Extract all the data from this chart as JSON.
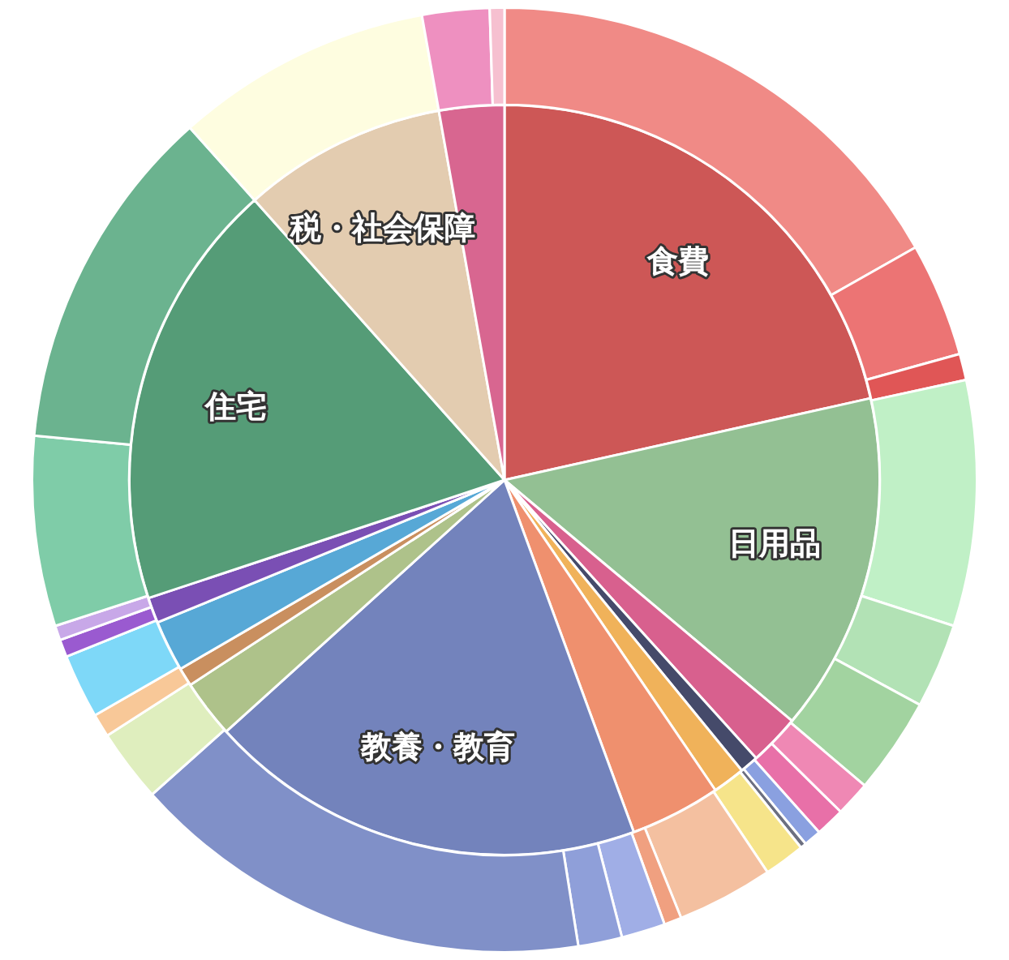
{
  "chart_data": [
    {
      "type": "pie",
      "legend": false,
      "categories": [
        "食費",
        "日用品",
        null,
        null,
        null,
        null,
        "教養・教育",
        null,
        null,
        null,
        null,
        "住宅",
        "税・社会保障",
        null
      ],
      "values": [
        21.5,
        14.6,
        2.2,
        0.8,
        1.4,
        3.9,
        18.9,
        2.5,
        0.8,
        2.2,
        1.1,
        18.5,
        8.8,
        2.8
      ],
      "colors": [
        "#cd5756",
        "#93c093",
        "#d8608e",
        "#454a6a",
        "#f0b25a",
        "#ef906e",
        "#7383bc",
        "#aec28a",
        "#c98f5f",
        "#57a8d6",
        "#7a4fb4",
        "#559c77",
        "#e3ccb0",
        "#d86690"
      ]
    },
    {
      "type": "donut",
      "legend": false,
      "categories": [
        null,
        null,
        null,
        null,
        null,
        null,
        null,
        null,
        null,
        null,
        null,
        null,
        null,
        null,
        null,
        null,
        null,
        null,
        null,
        null,
        null,
        null,
        null,
        null,
        null,
        null
      ],
      "values": [
        16.8,
        3.9,
        0.9,
        8.4,
        2.9,
        3.3,
        1.2,
        1.0,
        0.6,
        0.2,
        1.4,
        3.3,
        0.6,
        1.5,
        1.5,
        15.9,
        2.5,
        0.8,
        2.2,
        0.6,
        0.5,
        6.5,
        11.9,
        8.8,
        2.3,
        0.5
      ],
      "colors": [
        "#f08a86",
        "#ec7474",
        "#e05656",
        "#c0f0c6",
        "#b2e2b5",
        "#a2d3a0",
        "#ef88b4",
        "#e870a8",
        "#8aa0e0",
        "#6c6f80",
        "#f6e48a",
        "#f4c0a0",
        "#f0a080",
        "#a0aee6",
        "#8f9fd9",
        "#8090c8",
        "#dfeebe",
        "#f8c898",
        "#7ed8f8",
        "#9a5ad0",
        "#c8a8e8",
        "#7fcca8",
        "#6bb38f",
        "#fefde0",
        "#ee90c0",
        "#f6c0d0"
      ]
    }
  ]
}
